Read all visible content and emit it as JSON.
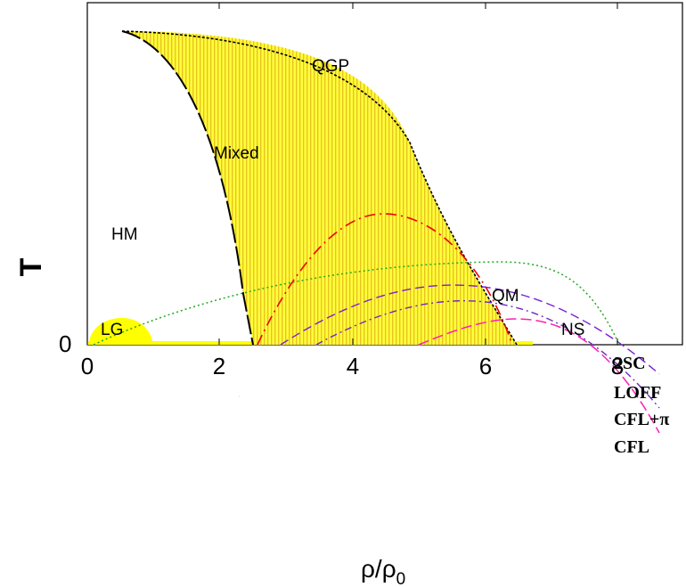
{
  "axes": {
    "y_label": "T",
    "y_zero_label": "0",
    "x_label_main": "ρ/ρ",
    "x_label_sub": "0",
    "x_ticks": [
      "0",
      "2",
      "4",
      "6",
      "8"
    ]
  },
  "regions": {
    "qgp": "QGP",
    "mixed": "Mixed",
    "hm": "HM",
    "qm": "QM",
    "lg": "LG",
    "ns": "NS"
  },
  "phases": {
    "two_sc": "2SC",
    "loff": "LOFF",
    "cfl_pi": "CFL+π",
    "cfl": "CFL"
  },
  "colors": {
    "fill": "#ffff00",
    "hatch": "#f2d21a",
    "two_sc": "#0000cc",
    "loff": "#7a1fd6",
    "cfl_pi": "#6a2cc0",
    "cfl": "#ff1fb4",
    "red_dome": "#ee0000",
    "green_ns": "#22aa22",
    "boundary": "#000000"
  }
}
